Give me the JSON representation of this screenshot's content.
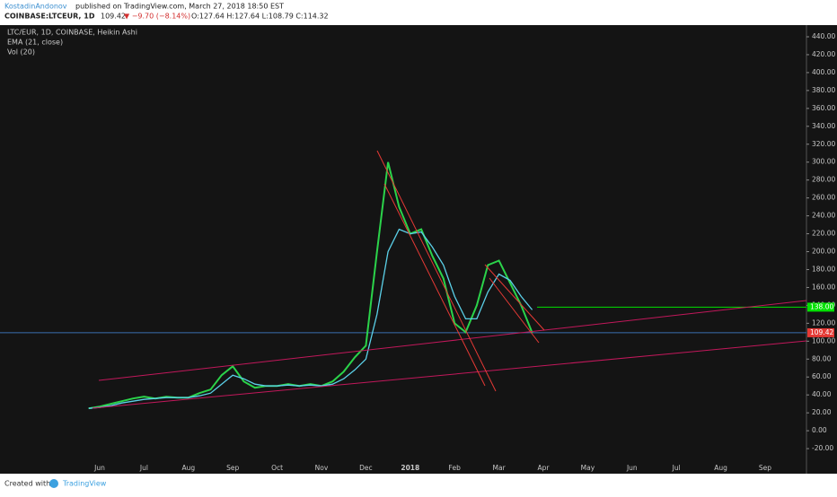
{
  "header": {
    "author": "KostadinAndonov",
    "published": "published on TradingView.com, March 27, 2018 18:50 EST",
    "symbol": "COINBASE:LTCEUR, 1D",
    "last": "109.42",
    "change": "▼ −9.70 (−8.14%)",
    "ohlc": "O:127.64 H:127.64 L:108.79 C:114.32"
  },
  "footer": {
    "created": "Created with",
    "brand": "TradingView"
  },
  "chart_data": {
    "type": "line",
    "categories": [
      null,
      "Jun",
      null,
      null,
      null,
      "Jul",
      null,
      null,
      null,
      "Aug",
      null,
      null,
      null,
      "Sep",
      null,
      null,
      null,
      "Oct",
      null,
      null,
      null,
      "Nov",
      null,
      null,
      null,
      "Dec",
      null,
      null,
      null,
      "2018",
      null,
      null,
      null,
      "Feb",
      null,
      null,
      null,
      "Mar",
      null,
      null,
      null,
      "Apr",
      null,
      null,
      null,
      "May",
      null,
      null,
      null,
      "Jun",
      null,
      null,
      null,
      "Jul",
      null,
      null,
      null,
      "Aug",
      null,
      null,
      null,
      "Sep",
      null,
      null,
      null
    ],
    "series": [
      {
        "name": "LTC/EUR, 1D, COINBASE, Heikin Ashi",
        "color": "#2bd34a",
        "values": [
          25,
          27,
          30,
          33,
          36,
          38,
          36,
          38,
          37,
          37,
          42,
          46,
          62,
          72,
          55,
          48,
          50,
          50,
          52,
          50,
          52,
          50,
          55,
          66,
          82,
          95,
          200,
          300,
          250,
          220,
          225,
          195,
          170,
          120,
          110,
          140,
          185,
          190,
          165,
          140,
          109.42,
          null,
          null,
          null,
          null,
          null,
          null,
          null,
          null,
          null,
          null,
          null,
          null,
          null,
          null,
          null,
          null,
          null,
          null,
          null,
          null,
          null,
          null,
          null,
          null
        ]
      },
      {
        "name": "EMA (21, close)",
        "color": "#5bd0e8",
        "values": [
          25,
          26,
          28,
          31,
          33,
          35,
          36,
          37,
          37,
          37,
          39,
          42,
          52,
          62,
          58,
          52,
          50,
          50,
          51,
          50,
          51,
          50,
          52,
          58,
          68,
          80,
          130,
          200,
          225,
          220,
          222,
          205,
          185,
          150,
          125,
          125,
          155,
          175,
          168,
          150,
          135,
          null,
          null,
          null,
          null,
          null,
          null,
          null,
          null,
          null,
          null,
          null,
          null,
          null,
          null,
          null,
          null,
          null,
          null,
          null,
          null,
          null,
          null,
          null,
          null
        ]
      }
    ],
    "volume_label": "Vol (20)",
    "ylim": [
      -30,
      450
    ],
    "yticks": [
      {
        "value": 440,
        "label": "440.00"
      },
      {
        "value": 420,
        "label": "420.00"
      },
      {
        "value": 400,
        "label": "400.00"
      },
      {
        "value": 380,
        "label": "380.00"
      },
      {
        "value": 360,
        "label": "360.00"
      },
      {
        "value": 340,
        "label": "340.00"
      },
      {
        "value": 320,
        "label": "320.00"
      },
      {
        "value": 300,
        "label": "300.00"
      },
      {
        "value": 280,
        "label": "280.00"
      },
      {
        "value": 260,
        "label": "260.00"
      },
      {
        "value": 240,
        "label": "240.00"
      },
      {
        "value": 220,
        "label": "220.00"
      },
      {
        "value": 200,
        "label": "200.00"
      },
      {
        "value": 180,
        "label": "180.00"
      },
      {
        "value": 160,
        "label": "160.00"
      },
      {
        "value": 140,
        "label": "140.00"
      },
      {
        "value": 120,
        "label": "120.00"
      },
      {
        "value": 100,
        "label": "100.00"
      },
      {
        "value": 80,
        "label": "80.00"
      },
      {
        "value": 60,
        "label": "60.00"
      },
      {
        "value": 40,
        "label": "40.00"
      },
      {
        "value": 20,
        "label": "20.00"
      },
      {
        "value": 0,
        "label": "0.00"
      },
      {
        "value": -20,
        "label": "-20.00"
      }
    ],
    "price_lines": [
      {
        "value": 138,
        "label": "138.00",
        "color": "#00e000"
      },
      {
        "value": 109.42,
        "label": "109.42",
        "color": "#e53935",
        "line_color": "#3b6fb0"
      }
    ]
  }
}
